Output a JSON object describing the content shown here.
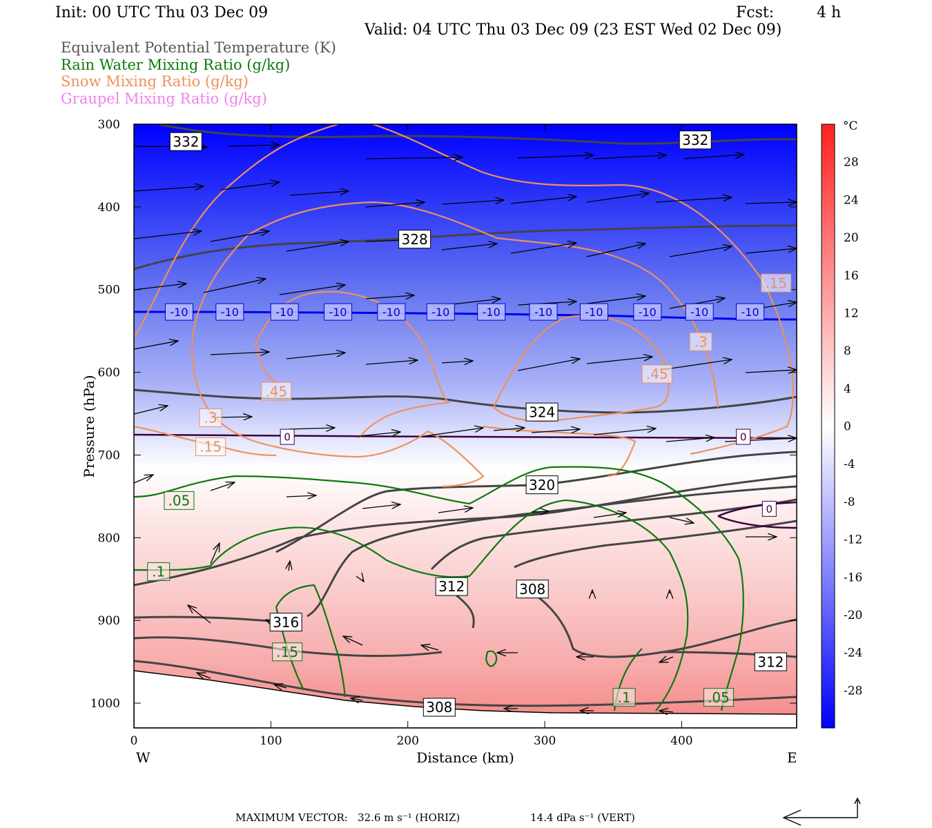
{
  "header": {
    "init": "Init: 00 UTC Thu 03 Dec 09",
    "fcst_label": "Fcst:",
    "fcst_value": "4 h",
    "valid": "Valid: 04 UTC Thu 03 Dec 09 (23 EST Wed 02 Dec 09)"
  },
  "fields": [
    {
      "label": "Equivalent Potential Temperature (K)",
      "color": "#555555"
    },
    {
      "label": "Rain Water Mixing Ratio (g/kg)",
      "color": "#0a7a0a"
    },
    {
      "label": "Snow Mixing Ratio (g/kg)",
      "color": "#f0905a"
    },
    {
      "label": "Graupel Mixing Ratio (g/kg)",
      "color": "#ee82ee"
    }
  ],
  "footer": {
    "max_vector_label": "MAXIMUM VECTOR:",
    "horiz": "32.6 m s⁻¹ (HORIZ)",
    "vert": "14.4 dPa s⁻¹ (VERT)"
  },
  "chart_data": {
    "type": "heatmap",
    "xlabel": "Distance (km)",
    "ylabel": "Pressure (hPa)",
    "xlim": [
      0,
      484
    ],
    "ylim": [
      1030,
      300
    ],
    "x_ticks": [
      0,
      100,
      200,
      300,
      400
    ],
    "y_ticks": [
      300,
      400,
      500,
      600,
      700,
      800,
      900,
      1000
    ],
    "x_end_labels": {
      "left": "W",
      "right": "E"
    },
    "colorbar": {
      "unit": "°C",
      "ticks": [
        28,
        24,
        20,
        16,
        12,
        8,
        4,
        0,
        -4,
        -8,
        -12,
        -16,
        -20,
        -24,
        -28
      ],
      "range": [
        -32,
        32
      ],
      "colors": {
        "cold": "#0000ff",
        "neutral": "#ffffff",
        "warm": "#ff2020"
      }
    },
    "isotherm_labels": {
      "minus10": {
        "value": "-10",
        "x": [
          33,
          70,
          110,
          149,
          188,
          224,
          261,
          299,
          336,
          375,
          413,
          450
        ],
        "p": 527
      },
      "zero": [
        {
          "value": "0",
          "x": 112,
          "p": 678
        },
        {
          "value": "0",
          "x": 445,
          "p": 678
        },
        {
          "value": "0",
          "x": 464,
          "p": 765
        }
      ]
    },
    "theta_e_labels": [
      {
        "value": "332",
        "x": 38,
        "p": 321
      },
      {
        "value": "332",
        "x": 410,
        "p": 319
      },
      {
        "value": "328",
        "x": 205,
        "p": 439
      },
      {
        "value": "324",
        "x": 298,
        "p": 648
      },
      {
        "value": "320",
        "x": 298,
        "p": 736
      },
      {
        "value": "312",
        "x": 232,
        "p": 859
      },
      {
        "value": "308",
        "x": 291,
        "p": 862
      },
      {
        "value": "316",
        "x": 111,
        "p": 902
      },
      {
        "value": "312",
        "x": 465,
        "p": 950
      },
      {
        "value": "308",
        "x": 223,
        "p": 1005
      }
    ],
    "rain_labels": [
      {
        "value": ".05",
        "x": 33,
        "p": 755
      },
      {
        "value": ".1",
        "x": 18,
        "p": 841
      },
      {
        "value": ".15",
        "x": 112,
        "p": 938
      },
      {
        "value": ".1",
        "x": 358,
        "p": 993
      },
      {
        "value": ".05",
        "x": 427,
        "p": 993
      }
    ],
    "snow_labels": [
      {
        "value": ".15",
        "x": 469,
        "p": 492
      },
      {
        "value": ".3",
        "x": 414,
        "p": 563
      },
      {
        "value": ".45",
        "x": 382,
        "p": 602
      },
      {
        "value": ".45",
        "x": 104,
        "p": 623
      },
      {
        "value": ".3",
        "x": 56,
        "p": 655
      },
      {
        "value": ".15",
        "x": 56,
        "p": 690
      }
    ]
  }
}
